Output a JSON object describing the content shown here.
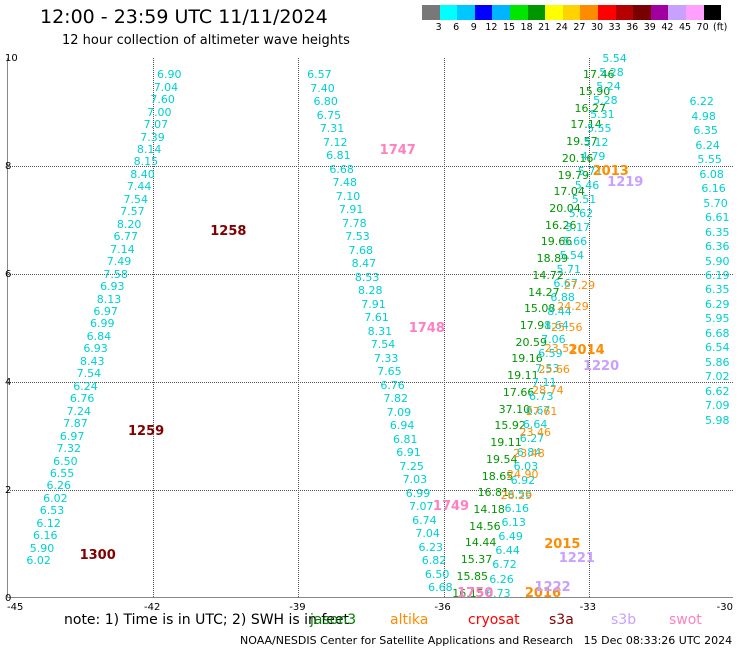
{
  "title": "12:00 - 23:59 UTC 11/11/2024",
  "subtitle": "12 hour collection of altimeter wave heights",
  "legend": {
    "colors": [
      "#787878",
      "#00ffff",
      "#00c8ff",
      "#0000ff",
      "#00b4ff",
      "#00e600",
      "#009600",
      "#ffff00",
      "#ffd200",
      "#ff8c00",
      "#ff0000",
      "#b40000",
      "#780000",
      "#a000a0",
      "#c8a0ff",
      "#ffa0ff",
      "#000000"
    ],
    "labels": [
      "3",
      "6",
      "9",
      "12",
      "15",
      "18",
      "21",
      "24",
      "27",
      "30",
      "33",
      "36",
      "39",
      "42",
      "45",
      "70",
      "(ft)"
    ]
  },
  "axes": {
    "x_ticks": [
      "-45",
      "-42",
      "-39",
      "-36",
      "-33",
      "-30"
    ],
    "y_ticks": [
      "10",
      "8",
      "6",
      "4",
      "2",
      "0"
    ]
  },
  "note": "note: 1) Time is in UTC; 2) SWH is in feet",
  "satellites": [
    {
      "name": "jason3",
      "color": "#008000"
    },
    {
      "name": "altika",
      "color": "#ff8c00"
    },
    {
      "name": "cryosat",
      "color": "#ff0000"
    },
    {
      "name": "s3a",
      "color": "#800000"
    },
    {
      "name": "s3b",
      "color": "#c8a0ff"
    },
    {
      "name": "swot",
      "color": "#ff80c0"
    }
  ],
  "footer": "NOAA/NESDIS Center for Satellite Applications and Research   15 Dec 08:33:26 UTC 2024",
  "pass_labels": [
    {
      "text": "1258",
      "color": "#800000",
      "lon": -40.8,
      "lat": 6.8
    },
    {
      "text": "1259",
      "color": "#800000",
      "lon": -42.5,
      "lat": 3.1
    },
    {
      "text": "1300",
      "color": "#800000",
      "lon": -43.5,
      "lat": 0.8
    },
    {
      "text": "1747",
      "color": "#ff80c0",
      "lon": -37.3,
      "lat": 8.3
    },
    {
      "text": "1748",
      "color": "#ff80c0",
      "lon": -36.7,
      "lat": 5.0
    },
    {
      "text": "1749",
      "color": "#ff80c0",
      "lon": -36.2,
      "lat": 1.7
    },
    {
      "text": "1750",
      "color": "#ff80c0",
      "lon": -35.7,
      "lat": 0.1
    },
    {
      "text": "2013",
      "color": "#ff8c00",
      "lon": -32.9,
      "lat": 7.9
    },
    {
      "text": "2014",
      "color": "#ff8c00",
      "lon": -33.4,
      "lat": 4.6
    },
    {
      "text": "2015",
      "color": "#ff8c00",
      "lon": -33.9,
      "lat": 1.0
    },
    {
      "text": "2016",
      "color": "#ff8c00",
      "lon": -34.3,
      "lat": 0.1
    },
    {
      "text": "1219",
      "color": "#c8a0ff",
      "lon": -32.6,
      "lat": 7.7
    },
    {
      "text": "1220",
      "color": "#c8a0ff",
      "lon": -33.1,
      "lat": 4.3
    },
    {
      "text": "1221",
      "color": "#c8a0ff",
      "lon": -33.6,
      "lat": 0.75
    },
    {
      "text": "1222",
      "color": "#c8a0ff",
      "lon": -34.1,
      "lat": 0.2
    }
  ],
  "tracks": [
    {
      "color": "#00d0d0",
      "lon0": -41.9,
      "lat0": 9.7,
      "lon1": -44.6,
      "lat1": 0.7,
      "values": [
        "6.90",
        "7.04",
        "7.60",
        "7.00",
        "7.07",
        "7.39",
        "8.14",
        "8.15",
        "8.40",
        "7.44",
        "7.54",
        "7.57",
        "8.20",
        "6.77",
        "7.14",
        "7.49",
        "7.58",
        "6.93",
        "8.13",
        "6.97",
        "6.99",
        "6.84",
        "6.93",
        "8.43",
        "7.54",
        "6.24",
        "6.76",
        "7.24",
        "7.87",
        "6.97",
        "7.32",
        "6.50",
        "6.55",
        "6.26",
        "6.02",
        "6.53",
        "6.12",
        "6.16",
        "5.90",
        "6.02"
      ]
    },
    {
      "color": "#00d0d0",
      "lon0": -38.8,
      "lat0": 9.7,
      "lon1": -36.3,
      "lat1": 0.2,
      "values": [
        "6.57",
        "7.40",
        "6.80",
        "6.75",
        "7.31",
        "7.12",
        "6.81",
        "6.68",
        "7.48",
        "7.10",
        "7.91",
        "7.78",
        "7.53",
        "7.68",
        "8.47",
        "8.53",
        "8.28",
        "7.91",
        "7.61",
        "8.31",
        "7.54",
        "7.33",
        "7.65",
        "6.76",
        "7.82",
        "7.09",
        "6.94",
        "6.81",
        "6.91",
        "7.25",
        "7.03",
        "6.99",
        "7.07",
        "6.74",
        "7.04",
        "6.23",
        "6.82",
        "6.50",
        "6.68"
      ]
    },
    {
      "color": "#009600",
      "lon0": -33.1,
      "lat0": 9.7,
      "lon1": -35.8,
      "lat1": 0.1,
      "values": [
        "17.46",
        "15.90",
        "16.27",
        "17.14",
        "19.57",
        "20.16",
        "19.79",
        "17.04",
        "20.04",
        "16.26",
        "19.66",
        "18.89",
        "14.72",
        "14.27",
        "15.08",
        "17.91",
        "20.59",
        "19.16",
        "19.11",
        "17.66",
        "37.10",
        "15.92",
        "19.11",
        "19.54",
        "18.65",
        "16.81",
        "14.18",
        "14.56",
        "14.44",
        "15.37",
        "15.85",
        "16.15"
      ]
    },
    {
      "color": "#00d0d0",
      "lon0": -32.7,
      "lat0": 10.0,
      "lon1": -35.1,
      "lat1": 0.1,
      "values": [
        "5.54",
        "5.28",
        "5.24",
        "5.28",
        "5.31",
        "5.55",
        "5.12",
        "4.79",
        "5.71",
        "5.46",
        "5.51",
        "5.62",
        "5.17",
        "5.66",
        "5.54",
        "5.71",
        "6.67",
        "6.88",
        "8.44",
        "8.64",
        "7.06",
        "6.59",
        "7.53",
        "7.11",
        "6.73",
        "6.67",
        "6.64",
        "6.27",
        "6.84",
        "6.03",
        "6.92",
        "6.56",
        "6.16",
        "6.13",
        "6.49",
        "6.44",
        "6.72",
        "6.26",
        "6.73"
      ]
    },
    {
      "color": "#ff8c00",
      "lon0": -33.5,
      "lat0": 5.8,
      "lon1": -34.8,
      "lat1": 1.9,
      "values": [
        "27.29",
        "24.29",
        "25.56",
        "23.51",
        "25.66",
        "28.74",
        "27.61",
        "23.46",
        "23.48",
        "24.90",
        "28.29"
      ]
    },
    {
      "color": "#00d0d0",
      "lon0": -30.9,
      "lat0": 9.2,
      "lon1": -30.0,
      "lat1": 3.3,
      "values": [
        "6.22",
        "4.98",
        "6.35",
        "6.24",
        "5.55",
        "6.08",
        "6.16",
        "5.70",
        "6.61",
        "6.35",
        "6.36",
        "5.90",
        "6.19",
        "6.35",
        "6.29",
        "5.95",
        "6.68",
        "6.54",
        "5.86",
        "7.02",
        "6.62",
        "7.09",
        "5.98"
      ]
    }
  ]
}
